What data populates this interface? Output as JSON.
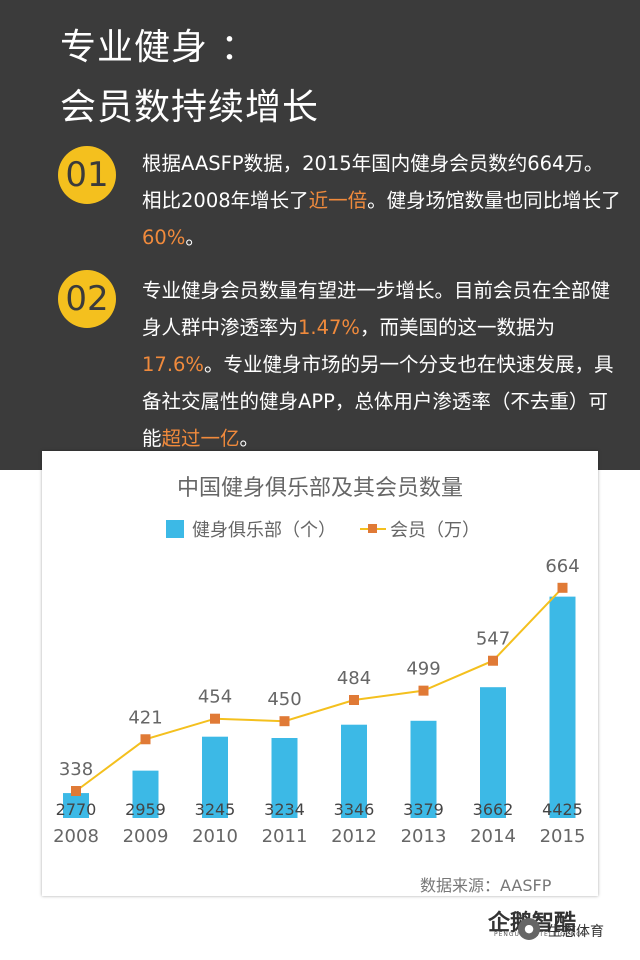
{
  "header": {
    "title_line1": "专业健身 ：",
    "title_line2": "会员数持续增长"
  },
  "points": [
    {
      "number": "01",
      "segments": [
        {
          "text": "根据AASFP数据，2015年国内健身会员数约664万。相比2008年增长了",
          "highlight": false
        },
        {
          "text": "近一倍",
          "highlight": true
        },
        {
          "text": "。健身场馆数量也同比增长了",
          "highlight": false
        },
        {
          "text": "60%",
          "highlight": true
        },
        {
          "text": "。",
          "highlight": false
        }
      ]
    },
    {
      "number": "02",
      "segments": [
        {
          "text": "专业健身会员数量有望进一步增长。目前会员在全部健身人群中渗透率为",
          "highlight": false
        },
        {
          "text": "1.47%",
          "highlight": true
        },
        {
          "text": "，而美国的这一数据为",
          "highlight": false
        },
        {
          "text": "17.6%",
          "highlight": true
        },
        {
          "text": "。专业健身市场的另一个分支也在快速发展，具备社交属性的健身APP，总体用户渗透率（不去重）可能",
          "highlight": false
        },
        {
          "text": "超过一亿",
          "highlight": true
        },
        {
          "text": "。",
          "highlight": false
        }
      ]
    }
  ],
  "colors": {
    "background_dark": "#3b3b3b",
    "badge": "#f4c01e",
    "highlight": "#f08a3c",
    "bar": "#3cb9e6",
    "line": "#f4c01e",
    "marker": "#e07a36"
  },
  "chart_data": {
    "type": "bar",
    "title": "中国健身俱乐部及其会员数量",
    "categories": [
      "2008",
      "2009",
      "2010",
      "2011",
      "2012",
      "2013",
      "2014",
      "2015"
    ],
    "series": [
      {
        "name": "健身俱乐部（个）",
        "type": "bar",
        "values": [
          2770,
          2959,
          3245,
          3234,
          3346,
          3379,
          3662,
          4425
        ]
      },
      {
        "name": "会员（万）",
        "type": "line",
        "values": [
          338,
          421,
          454,
          450,
          484,
          499,
          547,
          664
        ]
      }
    ],
    "legend_position": "top",
    "grid": false,
    "source": "数据来源：AASFP"
  },
  "watermark": {
    "logo_text": "企鹅智酷",
    "logo_subtext": "PENGUIN INTELLIGENCE",
    "account": "生态体育"
  }
}
